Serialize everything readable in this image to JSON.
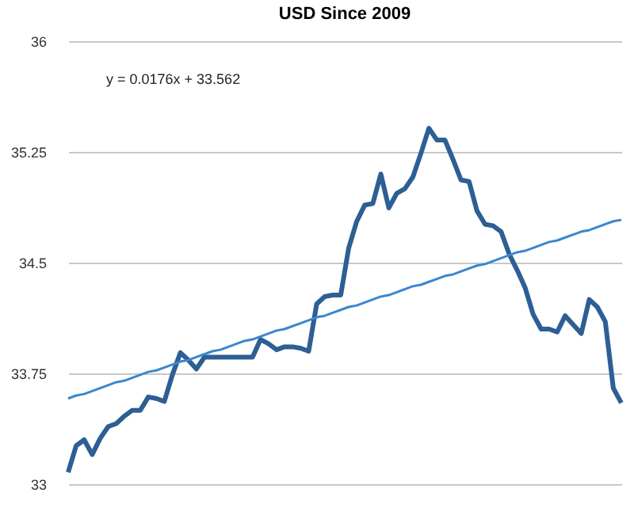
{
  "chart_data": {
    "type": "line",
    "title": "USD Since 2009",
    "annotations": [
      "y = 0.0176x + 33.562"
    ],
    "categories": [
      null,
      null,
      null,
      null,
      null,
      null,
      null,
      null,
      null,
      null,
      null,
      null,
      null,
      null,
      null,
      null,
      null,
      null,
      null,
      null,
      null,
      null,
      null,
      null,
      null,
      null,
      null,
      null,
      null,
      null,
      null,
      null,
      null,
      null,
      null,
      null,
      null,
      null,
      null,
      null,
      null,
      null,
      null,
      null,
      null,
      null,
      null,
      null,
      null,
      null,
      null,
      null,
      null,
      null,
      null,
      null,
      null,
      null,
      null,
      null,
      null,
      null,
      null,
      null,
      null,
      null,
      null,
      null,
      null,
      null
    ],
    "ylim": [
      33,
      36
    ],
    "yticks": [
      33,
      33.75,
      34.5,
      35.25,
      36
    ],
    "grid": "y",
    "tick_labels": "y",
    "marker": "none",
    "line_style": "solid",
    "series": [
      {
        "color": "#2d5f94",
        "values": [
          33.08,
          33.26,
          33.3,
          33.2,
          33.31,
          33.39,
          33.41,
          33.46,
          33.5,
          33.5,
          33.59,
          33.58,
          33.56,
          33.74,
          33.89,
          33.84,
          33.78,
          33.86,
          33.86,
          33.86,
          33.86,
          33.86,
          33.86,
          33.86,
          33.98,
          33.95,
          33.91,
          33.93,
          33.93,
          33.92,
          33.9,
          34.22,
          34.27,
          34.28,
          34.28,
          34.6,
          34.78,
          34.89,
          34.9,
          35.1,
          34.87,
          34.97,
          35.0,
          35.08,
          35.24,
          35.41,
          35.33,
          35.33,
          35.2,
          35.06,
          35.05,
          34.85,
          34.76,
          34.75,
          34.71,
          34.56,
          34.45,
          34.33,
          34.15,
          34.05,
          34.05,
          34.03,
          34.14,
          34.08,
          34.02,
          34.25,
          34.2,
          34.1,
          33.65,
          33.55
        ]
      },
      {
        "type": "line",
        "color": "#3b86cf",
        "values": [
          33.58,
          33.6,
          33.61,
          33.63,
          33.65,
          33.67,
          33.69,
          33.7,
          33.72,
          33.74,
          33.76,
          33.77,
          33.79,
          33.81,
          33.83,
          33.84,
          33.86,
          33.88,
          33.9,
          33.91,
          33.93,
          33.95,
          33.97,
          33.98,
          34.0,
          34.02,
          34.04,
          34.05,
          34.07,
          34.09,
          34.11,
          34.13,
          34.14,
          34.16,
          34.18,
          34.2,
          34.21,
          34.23,
          34.25,
          34.27,
          34.28,
          34.3,
          34.32,
          34.34,
          34.35,
          34.37,
          34.39,
          34.41,
          34.42,
          34.44,
          34.46,
          34.48,
          34.49,
          34.51,
          34.53,
          34.55,
          34.57,
          34.58,
          34.6,
          34.62,
          34.64,
          34.65,
          34.67,
          34.69,
          34.71,
          34.72,
          34.74,
          34.76,
          34.78,
          34.79
        ]
      }
    ]
  }
}
